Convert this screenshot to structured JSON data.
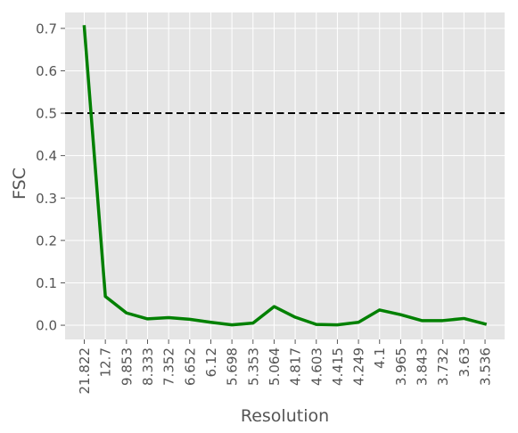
{
  "chart_data": {
    "type": "line",
    "title": "",
    "xlabel": "Resolution",
    "ylabel": "FSC",
    "categories": [
      "21.822",
      "12.7",
      "9.853",
      "8.333",
      "7.352",
      "6.652",
      "6.12",
      "5.698",
      "5.353",
      "5.064",
      "4.817",
      "4.603",
      "4.415",
      "4.249",
      "4.1",
      "3.965",
      "3.843",
      "3.732",
      "3.63",
      "3.536"
    ],
    "series": [
      {
        "values": [
          0.704,
          0.068,
          0.029,
          0.015,
          0.018,
          0.014,
          0.007,
          0.001,
          0.005,
          0.044,
          0.019,
          0.002,
          0.001,
          0.007,
          0.036,
          0.025,
          0.011,
          0.011,
          0.016,
          0.003
        ],
        "color": "#008000"
      }
    ],
    "threshold": {
      "value": 0.5,
      "color": "#000000",
      "style": "dashed"
    },
    "ylim": [
      -0.0335,
      0.7375
    ],
    "yticks": [
      0.0,
      0.1,
      0.2,
      0.3,
      0.4,
      0.5,
      0.6,
      0.7
    ],
    "grid": true,
    "background": "#e5e5e5",
    "legend": "none"
  }
}
